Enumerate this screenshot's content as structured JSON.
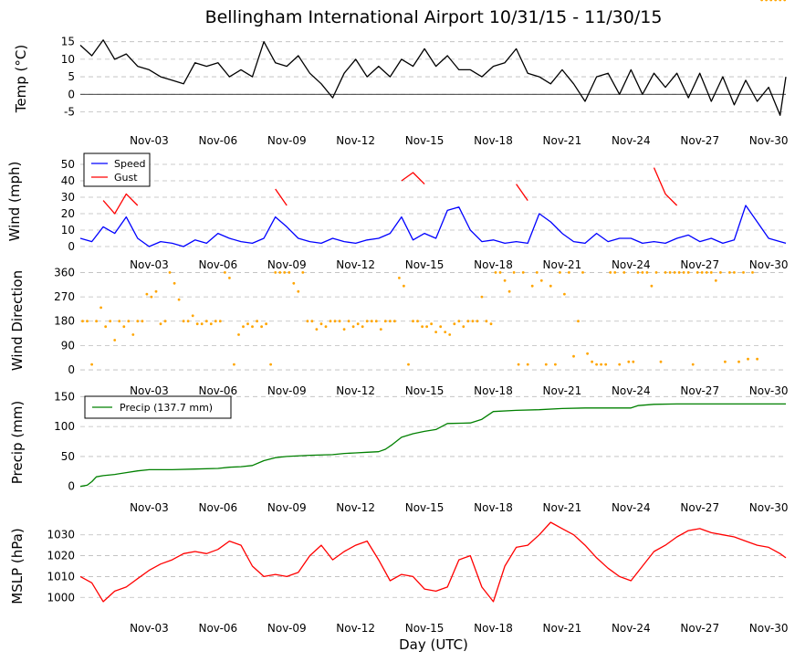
{
  "title": "Bellingham International Airport 10/31/15 - 11/30/15",
  "xlabel": "Day (UTC)",
  "colors": {
    "temp": "#000000",
    "speed": "#0000ff",
    "gust": "#ff0000",
    "direction": "#ffa500",
    "precip": "#008000",
    "mslp": "#ff0000",
    "grid": "#bbbbbb"
  },
  "chart_data": [
    {
      "type": "line",
      "name": "temperature",
      "ylabel": "Temp (°C)",
      "xlim": [
        0,
        30.75
      ],
      "ylim": [
        -8,
        17
      ],
      "yticks": [
        -5,
        0,
        5,
        10,
        15
      ],
      "xtick_labels": [
        "Nov-03",
        "Nov-06",
        "Nov-09",
        "Nov-12",
        "Nov-15",
        "Nov-18",
        "Nov-21",
        "Nov-24",
        "Nov-27",
        "Nov-30"
      ],
      "zero_line": true,
      "grid": true,
      "x": [
        0,
        0.5,
        1,
        1.5,
        2,
        2.5,
        3,
        3.5,
        4,
        4.5,
        5,
        5.5,
        6,
        6.5,
        7,
        7.5,
        8,
        8.5,
        9,
        9.5,
        10,
        10.5,
        11,
        11.5,
        12,
        12.5,
        13,
        13.5,
        14,
        14.5,
        15,
        15.5,
        16,
        16.5,
        17,
        17.5,
        18,
        18.5,
        19,
        19.5,
        20,
        20.5,
        21,
        21.5,
        22,
        22.5,
        23,
        23.5,
        24,
        24.5,
        25,
        25.5,
        26,
        26.5,
        27,
        27.5,
        28,
        28.5,
        29,
        29.5,
        30,
        30.5,
        30.75
      ],
      "series": [
        {
          "values": [
            14,
            11,
            15.5,
            10,
            11.5,
            8,
            7,
            5,
            4,
            3,
            9,
            8,
            9,
            5,
            7,
            5,
            15,
            9,
            8,
            11,
            6,
            3,
            -1,
            6,
            10,
            5,
            8,
            5,
            10,
            8,
            13,
            8,
            11,
            7,
            7,
            5,
            8,
            9,
            13,
            6,
            5,
            3,
            7,
            3,
            -2,
            5,
            6,
            0,
            7,
            0,
            6,
            2,
            6,
            -1,
            6,
            -2,
            5,
            -3,
            4,
            -2,
            2,
            -6,
            5
          ]
        }
      ]
    },
    {
      "type": "line",
      "name": "wind",
      "ylabel": "Wind (mph)",
      "xlim": [
        0,
        30.75
      ],
      "ylim": [
        0,
        55
      ],
      "yticks": [
        0,
        10,
        20,
        30,
        40,
        50
      ],
      "xtick_labels": [
        "Nov-03",
        "Nov-06",
        "Nov-09",
        "Nov-12",
        "Nov-15",
        "Nov-18",
        "Nov-21",
        "Nov-24",
        "Nov-27",
        "Nov-30"
      ],
      "grid": true,
      "legend": "top-left",
      "x": [
        0,
        0.5,
        1,
        1.5,
        2,
        2.5,
        3,
        3.5,
        4,
        4.5,
        5,
        5.5,
        6,
        6.5,
        7,
        7.5,
        8,
        8.5,
        9,
        9.5,
        10,
        10.5,
        11,
        11.5,
        12,
        12.5,
        13,
        13.5,
        14,
        14.5,
        15,
        15.5,
        16,
        16.5,
        17,
        17.5,
        18,
        18.5,
        19,
        19.5,
        20,
        20.5,
        21,
        21.5,
        22,
        22.5,
        23,
        23.5,
        24,
        24.5,
        25,
        25.5,
        26,
        26.5,
        27,
        27.5,
        28,
        28.5,
        29,
        29.5,
        30,
        30.5,
        30.75
      ],
      "series": [
        {
          "name": "Speed",
          "values": [
            5,
            3,
            12,
            8,
            18,
            5,
            0,
            3,
            2,
            0,
            4,
            2,
            8,
            5,
            3,
            2,
            5,
            18,
            12,
            5,
            3,
            2,
            5,
            3,
            2,
            4,
            5,
            8,
            18,
            4,
            8,
            5,
            22,
            24,
            10,
            3,
            4,
            2,
            3,
            2,
            20,
            15,
            8,
            3,
            2,
            8,
            3,
            5,
            5,
            2,
            3,
            2,
            5,
            7,
            3,
            5,
            2,
            4,
            25,
            15,
            5,
            3,
            2
          ]
        },
        {
          "name": "Gust",
          "values": [
            null,
            null,
            28,
            20,
            32,
            25,
            null,
            null,
            null,
            null,
            null,
            null,
            null,
            null,
            null,
            null,
            null,
            35,
            25,
            null,
            null,
            null,
            null,
            null,
            null,
            null,
            null,
            null,
            40,
            45,
            38,
            null,
            null,
            null,
            null,
            null,
            null,
            null,
            38,
            28,
            null,
            null,
            null,
            null,
            null,
            null,
            null,
            null,
            null,
            null,
            48,
            32,
            25,
            null,
            null,
            null,
            null,
            null,
            null,
            null,
            null,
            null,
            null
          ]
        }
      ]
    },
    {
      "type": "scatter",
      "name": "wind-direction",
      "ylabel": "Wind Direction",
      "xlim": [
        0,
        30.75
      ],
      "ylim": [
        -10,
        375
      ],
      "yticks": [
        0,
        90,
        180,
        270,
        360
      ],
      "xtick_labels": [
        "Nov-03",
        "Nov-06",
        "Nov-09",
        "Nov-12",
        "Nov-15",
        "Nov-18",
        "Nov-21",
        "Nov-24",
        "Nov-27",
        "Nov-30"
      ],
      "grid": true,
      "x": [
        0.1,
        0.3,
        0.5,
        0.7,
        0.9,
        1.1,
        1.3,
        1.5,
        1.7,
        1.9,
        2.1,
        2.3,
        2.5,
        2.7,
        2.9,
        3.1,
        3.3,
        3.5,
        3.7,
        3.9,
        4.1,
        4.3,
        4.5,
        4.7,
        4.9,
        5.1,
        5.3,
        5.5,
        5.7,
        5.9,
        6.1,
        6.3,
        6.5,
        6.7,
        6.9,
        7.1,
        7.3,
        7.5,
        7.7,
        7.9,
        8.1,
        8.3,
        8.5,
        8.7,
        8.9,
        9.1,
        9.3,
        9.5,
        9.7,
        9.9,
        10.1,
        10.3,
        10.5,
        10.7,
        10.9,
        11.1,
        11.3,
        11.5,
        11.7,
        11.9,
        12.1,
        12.3,
        12.5,
        12.7,
        12.9,
        13.1,
        13.3,
        13.5,
        13.7,
        13.9,
        14.1,
        14.3,
        14.5,
        14.7,
        14.9,
        15.1,
        15.3,
        15.5,
        15.7,
        15.9,
        16.1,
        16.3,
        16.5,
        16.7,
        16.9,
        17.1,
        17.3,
        17.5,
        17.7,
        17.9,
        18.1,
        18.3,
        18.5,
        18.7,
        18.9,
        19.1,
        19.3,
        19.5,
        19.7,
        19.9,
        20.1,
        20.3,
        20.5,
        20.7,
        20.9,
        21.1,
        21.3,
        21.5,
        21.7,
        21.9,
        22.1,
        22.3,
        22.5,
        22.7,
        22.9,
        23.1,
        23.3,
        23.5,
        23.7,
        23.9,
        24.1,
        24.3,
        24.5,
        24.7,
        24.9,
        25.1,
        25.3,
        25.5,
        25.7,
        25.9,
        26.1,
        26.3,
        26.5,
        26.7,
        26.9,
        27.1,
        27.3,
        27.5,
        27.7,
        27.9,
        28.1,
        28.3,
        28.5,
        28.7,
        28.9,
        29.1,
        29.3,
        29.5,
        29.7,
        29.9,
        30.1,
        30.3,
        30.5,
        30.7
      ],
      "series": [
        {
          "values": [
            180,
            180,
            20,
            180,
            230,
            160,
            180,
            110,
            180,
            160,
            180,
            130,
            180,
            180,
            280,
            270,
            290,
            170,
            180,
            360,
            320,
            260,
            180,
            180,
            200,
            170,
            170,
            180,
            170,
            180,
            180,
            360,
            340,
            20,
            130,
            160,
            170,
            160,
            180,
            160,
            170,
            20,
            360,
            360,
            360,
            360,
            320,
            290,
            360,
            180,
            180,
            150,
            170,
            160,
            180,
            180,
            180,
            150,
            180,
            160,
            170,
            160,
            180,
            180,
            180,
            150,
            180,
            180,
            180,
            340,
            310,
            20,
            180,
            180,
            160,
            160,
            170,
            140,
            160,
            140,
            130,
            170,
            180,
            160,
            180,
            180,
            180,
            270,
            180,
            170,
            360,
            360,
            330,
            290,
            360,
            20,
            360,
            20,
            310,
            360,
            330,
            20,
            310,
            20,
            360,
            280,
            360,
            50,
            180,
            360,
            60,
            30,
            20,
            20,
            20,
            360,
            360,
            20,
            360,
            30,
            30,
            360,
            360,
            360,
            310,
            360,
            30,
            360,
            360,
            360,
            360,
            360,
            360,
            20,
            360,
            360,
            360,
            360,
            330,
            360,
            30,
            360,
            360,
            30,
            360,
            40,
            360,
            40
          ]
        }
      ]
    },
    {
      "type": "line",
      "name": "precip",
      "ylabel": "Precip (mm)",
      "xlim": [
        0,
        30.75
      ],
      "ylim": [
        -5,
        152
      ],
      "yticks": [
        0,
        50,
        100,
        150
      ],
      "xtick_labels": [
        "Nov-03",
        "Nov-06",
        "Nov-09",
        "Nov-12",
        "Nov-15",
        "Nov-18",
        "Nov-21",
        "Nov-24",
        "Nov-27",
        "Nov-30"
      ],
      "grid": true,
      "legend": "top-left",
      "x": [
        0,
        0.3,
        0.5,
        0.7,
        1,
        1.5,
        2,
        2.5,
        3,
        4,
        5,
        6,
        6.5,
        7,
        7.5,
        8,
        8.5,
        9,
        10,
        11,
        11.5,
        12,
        12.5,
        13,
        13.3,
        13.6,
        14,
        14.5,
        15,
        15.5,
        16,
        17,
        17.5,
        18,
        19,
        20,
        21,
        22,
        23,
        24,
        24.3,
        25,
        26,
        27,
        28,
        29,
        30,
        30.75
      ],
      "series": [
        {
          "name": "Precip (137.7 mm)",
          "values": [
            0,
            2,
            8,
            16,
            18,
            20,
            23,
            26,
            28,
            28,
            29,
            30,
            32,
            33,
            35,
            43,
            48,
            50,
            52,
            53,
            55,
            56,
            57,
            58,
            62,
            70,
            82,
            88,
            92,
            95,
            105,
            106,
            112,
            125,
            127,
            128,
            130,
            131,
            131,
            131,
            135,
            137,
            137.7,
            137.7,
            137.7,
            137.7,
            137.7,
            137.7
          ]
        }
      ]
    },
    {
      "type": "line",
      "name": "mslp",
      "ylabel": "MSLP (hPa)",
      "xlim": [
        0,
        30.75
      ],
      "ylim": [
        994,
        1036
      ],
      "yticks": [
        1000,
        1010,
        1020,
        1030
      ],
      "xtick_labels": [
        "Nov-03",
        "Nov-06",
        "Nov-09",
        "Nov-12",
        "Nov-15",
        "Nov-18",
        "Nov-21",
        "Nov-24",
        "Nov-27",
        "Nov-30"
      ],
      "grid": true,
      "x": [
        0,
        0.5,
        1,
        1.5,
        2,
        2.5,
        3,
        3.5,
        4,
        4.5,
        5,
        5.5,
        6,
        6.5,
        7,
        7.5,
        8,
        8.5,
        9,
        9.5,
        10,
        10.5,
        11,
        11.5,
        12,
        12.5,
        13,
        13.5,
        14,
        14.5,
        15,
        15.5,
        16,
        16.5,
        17,
        17.5,
        18,
        18.5,
        19,
        19.5,
        20,
        20.5,
        21,
        21.5,
        22,
        22.5,
        23,
        23.5,
        24,
        24.5,
        25,
        25.5,
        26,
        26.5,
        27,
        27.5,
        28,
        28.5,
        29,
        29.5,
        30,
        30.5,
        30.75
      ],
      "series": [
        {
          "values": [
            1010,
            1007,
            998,
            1003,
            1005,
            1009,
            1013,
            1016,
            1018,
            1021,
            1022,
            1021,
            1023,
            1027,
            1025,
            1015,
            1010,
            1011,
            1010,
            1012,
            1020,
            1025,
            1018,
            1022,
            1025,
            1027,
            1018,
            1008,
            1011,
            1010,
            1004,
            1003,
            1005,
            1018,
            1020,
            1005,
            998,
            1015,
            1024,
            1025,
            1030,
            1036,
            1033,
            1030,
            1025,
            1019,
            1014,
            1010,
            1008,
            1015,
            1022,
            1025,
            1029,
            1032,
            1033,
            1031,
            1030,
            1029,
            1027,
            1025,
            1024,
            1021,
            1019
          ]
        }
      ]
    }
  ]
}
